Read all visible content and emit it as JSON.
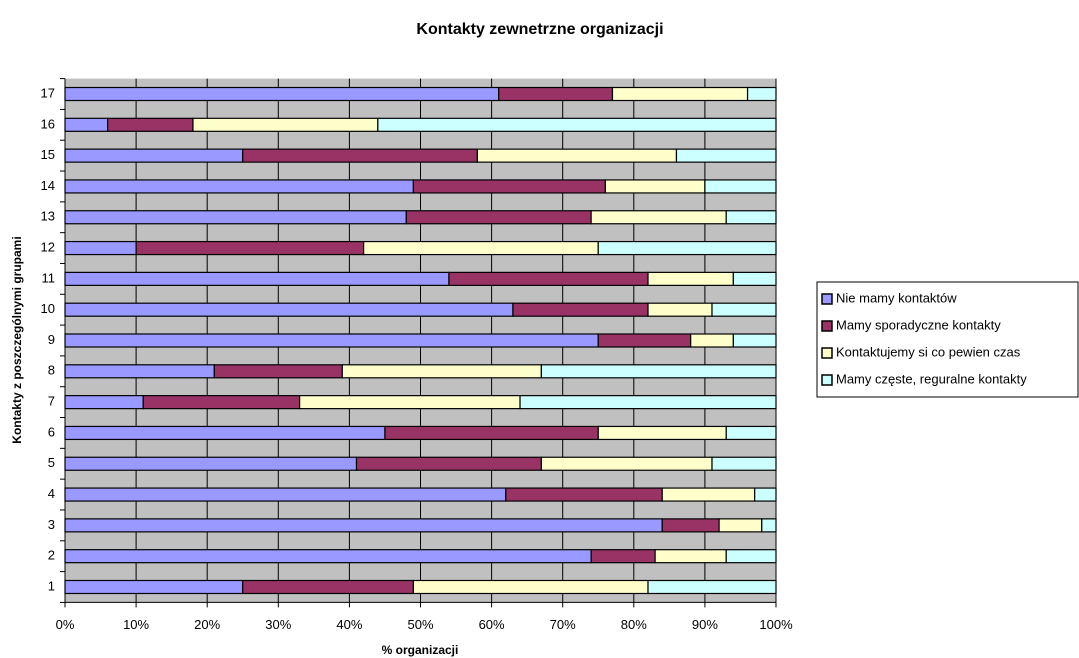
{
  "chart_data": {
    "type": "hbar_stacked",
    "title": "Kontakty zewnetrzne organizacji",
    "x_label": "% organizacji",
    "y_label": "Kontakty z poszczególnymi grupami",
    "categories": [
      "1",
      "2",
      "3",
      "4",
      "5",
      "6",
      "7",
      "8",
      "9",
      "10",
      "11",
      "12",
      "13",
      "14",
      "15",
      "16",
      "17"
    ],
    "series": [
      {
        "name": "Nie mamy kontaktów",
        "color": "#9999ff",
        "values": [
          25,
          74,
          84,
          62,
          41,
          45,
          11,
          21,
          75,
          63,
          54,
          10,
          48,
          49,
          25,
          6,
          61
        ]
      },
      {
        "name": "Mamy sporadyczne kontakty",
        "color": "#993366",
        "values": [
          24,
          9,
          8,
          22,
          26,
          30,
          22,
          18,
          13,
          19,
          28,
          32,
          26,
          27,
          33,
          12,
          16
        ]
      },
      {
        "name": "Kontaktujemy si co pewien czas",
        "color": "#ffffcc",
        "values": [
          33,
          10,
          6,
          13,
          24,
          18,
          31,
          28,
          6,
          9,
          12,
          33,
          19,
          14,
          28,
          26,
          19
        ]
      },
      {
        "name": "Mamy częste, reguralne kontakty",
        "color": "#ccffff",
        "values": [
          18,
          7,
          2,
          3,
          9,
          7,
          36,
          33,
          6,
          9,
          6,
          25,
          7,
          10,
          14,
          56,
          4
        ]
      }
    ],
    "xlim": [
      0,
      100
    ],
    "xticks": [
      {
        "value": 0,
        "label": "0%"
      },
      {
        "value": 10,
        "label": "10%"
      },
      {
        "value": 20,
        "label": "20%"
      },
      {
        "value": 30,
        "label": "30%"
      },
      {
        "value": 40,
        "label": "40%"
      },
      {
        "value": 50,
        "label": "50%"
      },
      {
        "value": 60,
        "label": "60%"
      },
      {
        "value": 70,
        "label": "70%"
      },
      {
        "value": 80,
        "label": "80%"
      },
      {
        "value": 90,
        "label": "90%"
      },
      {
        "value": 100,
        "label": "100%"
      }
    ],
    "grid": true,
    "legend": "right",
    "plot_background": "#c0c0c0"
  }
}
